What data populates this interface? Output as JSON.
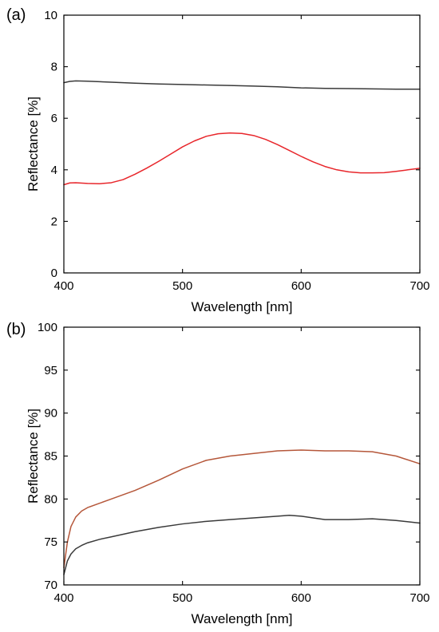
{
  "chart_data": [
    {
      "panel_label": "(a)",
      "type": "line",
      "xlabel": "Wavelength [nm]",
      "ylabel": "Reflectance [%]",
      "xlim": [
        400,
        700
      ],
      "ylim": [
        0,
        10
      ],
      "xticks": [
        400,
        500,
        600,
        700
      ],
      "yticks": [
        0,
        2,
        4,
        6,
        8,
        10
      ],
      "series": [
        {
          "color": "#3a3a3a",
          "x": [
            400,
            405,
            410,
            420,
            440,
            460,
            480,
            500,
            520,
            540,
            560,
            580,
            600,
            620,
            640,
            660,
            680,
            700
          ],
          "y": [
            7.38,
            7.43,
            7.45,
            7.44,
            7.4,
            7.36,
            7.33,
            7.31,
            7.29,
            7.27,
            7.25,
            7.22,
            7.18,
            7.16,
            7.15,
            7.14,
            7.13,
            7.13
          ]
        },
        {
          "color": "#e8262b",
          "x": [
            400,
            405,
            410,
            420,
            430,
            440,
            450,
            460,
            470,
            480,
            490,
            500,
            510,
            520,
            530,
            540,
            550,
            560,
            570,
            580,
            590,
            600,
            610,
            620,
            630,
            640,
            650,
            660,
            670,
            680,
            690,
            700
          ],
          "y": [
            3.42,
            3.49,
            3.5,
            3.47,
            3.46,
            3.5,
            3.62,
            3.83,
            4.07,
            4.33,
            4.61,
            4.89,
            5.12,
            5.3,
            5.4,
            5.43,
            5.41,
            5.33,
            5.18,
            4.98,
            4.75,
            4.52,
            4.31,
            4.13,
            4.0,
            3.92,
            3.88,
            3.88,
            3.89,
            3.94,
            4.0,
            4.06
          ]
        }
      ]
    },
    {
      "panel_label": "(b)",
      "type": "line",
      "xlabel": "Wavelength [nm]",
      "ylabel": "Reflectance [%]",
      "xlim": [
        400,
        700
      ],
      "ylim": [
        70,
        100
      ],
      "xticks": [
        400,
        500,
        600,
        700
      ],
      "yticks": [
        70,
        75,
        80,
        85,
        90,
        95,
        100
      ],
      "series": [
        {
          "color": "#b5573a",
          "x": [
            400,
            403,
            406,
            410,
            415,
            420,
            430,
            440,
            460,
            480,
            500,
            520,
            540,
            560,
            580,
            600,
            620,
            640,
            660,
            680,
            700
          ],
          "y": [
            72.0,
            75.0,
            76.8,
            77.9,
            78.6,
            79.0,
            79.5,
            80.0,
            81.0,
            82.2,
            83.5,
            84.5,
            85.0,
            85.3,
            85.6,
            85.7,
            85.6,
            85.6,
            85.5,
            85.0,
            84.1
          ]
        },
        {
          "color": "#3a3a3a",
          "x": [
            400,
            403,
            406,
            410,
            415,
            420,
            430,
            440,
            460,
            480,
            500,
            520,
            540,
            560,
            580,
            590,
            600,
            610,
            620,
            640,
            660,
            680,
            700
          ],
          "y": [
            71.2,
            72.8,
            73.6,
            74.2,
            74.6,
            74.9,
            75.3,
            75.6,
            76.2,
            76.7,
            77.1,
            77.4,
            77.6,
            77.8,
            78.0,
            78.1,
            78.0,
            77.8,
            77.6,
            77.6,
            77.7,
            77.5,
            77.2
          ]
        }
      ]
    }
  ]
}
